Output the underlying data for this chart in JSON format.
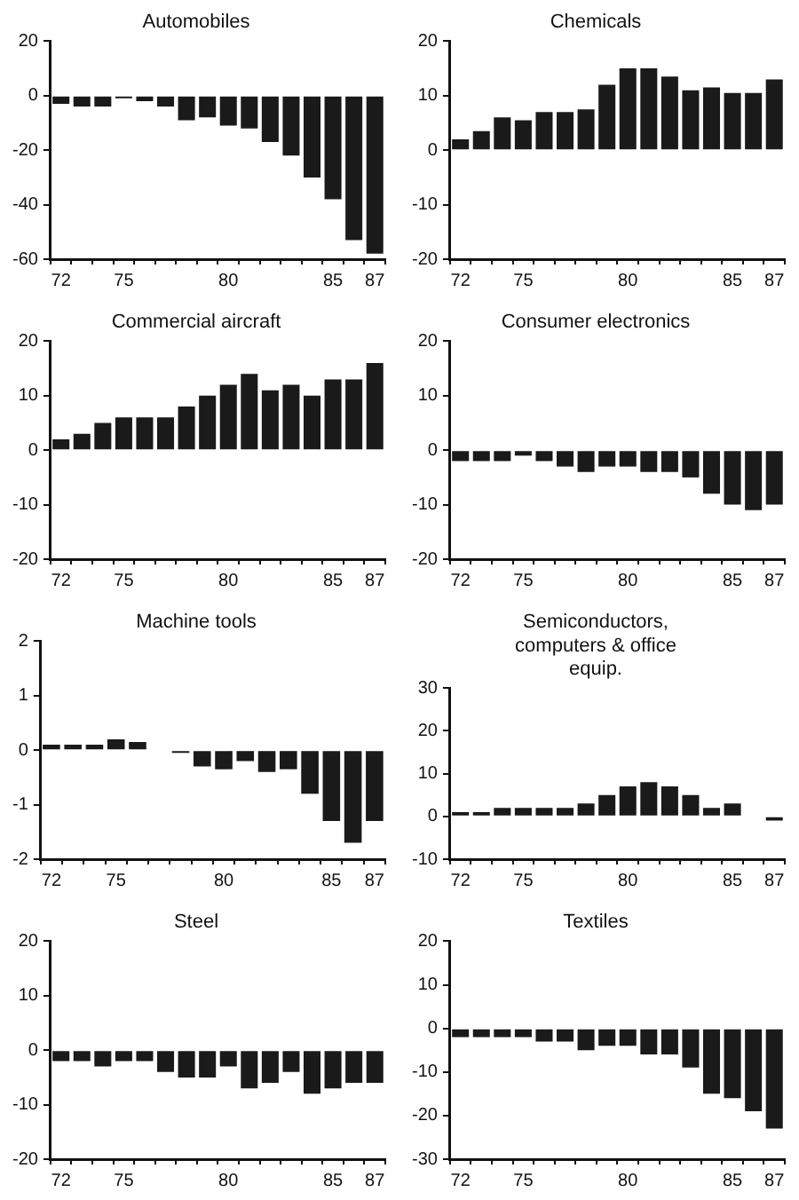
{
  "chart_data": [
    {
      "type": "bar",
      "title": "Automobiles",
      "categories": [
        "72",
        null,
        null,
        "75",
        null,
        null,
        null,
        null,
        "80",
        null,
        null,
        null,
        null,
        "85",
        null,
        "87"
      ],
      "values": [
        -3,
        -4,
        -4,
        -1,
        -2,
        -4,
        -9,
        -8,
        -11,
        -12,
        -17,
        -22,
        -30,
        -38,
        -53,
        -58
      ],
      "color": "#1a1a1a",
      "ylim": [
        -60,
        20
      ],
      "yticks": [
        -60,
        -40,
        -20,
        0,
        20
      ],
      "grid": false,
      "legend": false
    },
    {
      "type": "bar",
      "title": "Chemicals",
      "categories": [
        "72",
        null,
        null,
        "75",
        null,
        null,
        null,
        null,
        "80",
        null,
        null,
        null,
        null,
        "85",
        null,
        "87"
      ],
      "values": [
        2,
        3.5,
        6,
        5.5,
        7,
        7,
        7.5,
        12,
        15,
        15,
        13.5,
        11,
        11.5,
        10.5,
        10.5,
        13
      ],
      "color": "#1a1a1a",
      "ylim": [
        -20,
        20
      ],
      "yticks": [
        -20,
        -10,
        0,
        10,
        20
      ],
      "grid": false,
      "legend": false
    },
    {
      "type": "bar",
      "title": "Commercial aircraft",
      "categories": [
        "72",
        null,
        null,
        "75",
        null,
        null,
        null,
        null,
        "80",
        null,
        null,
        null,
        null,
        "85",
        null,
        "87"
      ],
      "values": [
        2,
        3,
        5,
        6,
        6,
        6,
        8,
        10,
        12,
        14,
        11,
        12,
        10,
        13,
        13,
        16
      ],
      "color": "#1a1a1a",
      "ylim": [
        -20,
        20
      ],
      "yticks": [
        -20,
        -10,
        0,
        10,
        20
      ],
      "grid": false,
      "legend": false
    },
    {
      "type": "bar",
      "title": "Consumer electronics",
      "categories": [
        "72",
        null,
        null,
        "75",
        null,
        null,
        null,
        null,
        "80",
        null,
        null,
        null,
        null,
        "85",
        null,
        "87"
      ],
      "values": [
        -2,
        -2,
        -2,
        -1,
        -2,
        -3,
        -4,
        -3,
        -3,
        -4,
        -4,
        -5,
        -8,
        -10,
        -11,
        -10
      ],
      "color": "#1a1a1a",
      "ylim": [
        -20,
        20
      ],
      "yticks": [
        -20,
        -10,
        0,
        10,
        20
      ],
      "grid": false,
      "legend": false
    },
    {
      "type": "bar",
      "title": "Machine tools",
      "categories": [
        "72",
        null,
        null,
        "75",
        null,
        null,
        null,
        null,
        "80",
        null,
        null,
        null,
        null,
        "85",
        null,
        "87"
      ],
      "values": [
        0.1,
        0.1,
        0.1,
        0.2,
        0.15,
        0,
        -0.05,
        -0.3,
        -0.35,
        -0.2,
        -0.4,
        -0.35,
        -0.8,
        -1.3,
        -1.7,
        -1.3
      ],
      "color": "#1a1a1a",
      "ylim": [
        -2,
        2
      ],
      "yticks": [
        -2,
        -1,
        0,
        1,
        2
      ],
      "grid": false,
      "legend": false
    },
    {
      "type": "bar",
      "title": "Semiconductors, computers & office equip.",
      "categories": [
        "72",
        null,
        null,
        "75",
        null,
        null,
        null,
        null,
        "80",
        null,
        null,
        null,
        null,
        "85",
        null,
        "87"
      ],
      "values": [
        1,
        1,
        2,
        2,
        2,
        2,
        3,
        5,
        7,
        8,
        7,
        5,
        2,
        3,
        0,
        -1
      ],
      "color": "#1a1a1a",
      "ylim": [
        -10,
        30
      ],
      "yticks": [
        -10,
        0,
        10,
        20,
        30
      ],
      "grid": false,
      "legend": false
    },
    {
      "type": "bar",
      "title": "Steel",
      "categories": [
        "72",
        null,
        null,
        "75",
        null,
        null,
        null,
        null,
        "80",
        null,
        null,
        null,
        null,
        "85",
        null,
        "87"
      ],
      "values": [
        -2,
        -2,
        -3,
        -2,
        -2,
        -4,
        -5,
        -5,
        -3,
        -7,
        -6,
        -4,
        -8,
        -7,
        -6,
        -6
      ],
      "color": "#1a1a1a",
      "ylim": [
        -20,
        20
      ],
      "yticks": [
        -20,
        -10,
        0,
        10,
        20
      ],
      "grid": false,
      "legend": false
    },
    {
      "type": "bar",
      "title": "Textiles",
      "categories": [
        "72",
        null,
        null,
        "75",
        null,
        null,
        null,
        null,
        "80",
        null,
        null,
        null,
        null,
        "85",
        null,
        "87"
      ],
      "values": [
        -2,
        -2,
        -2,
        -2,
        -3,
        -3,
        -5,
        -4,
        -4,
        -6,
        -6,
        -9,
        -15,
        -16,
        -19,
        -23
      ],
      "color": "#1a1a1a",
      "ylim": [
        -30,
        20
      ],
      "yticks": [
        -30,
        -20,
        -10,
        0,
        10,
        20
      ],
      "grid": false,
      "legend": false
    }
  ]
}
